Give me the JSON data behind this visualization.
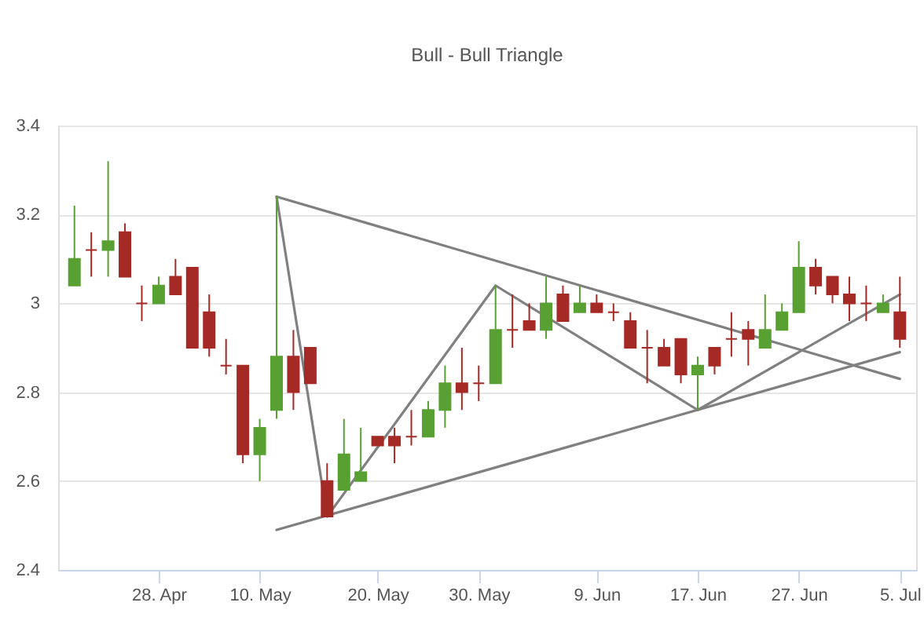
{
  "chart_data": {
    "type": "candlestick",
    "subtitle": "Bull - Bull Triangle",
    "categories": [
      null,
      null,
      null,
      null,
      null,
      "28. Apr",
      null,
      null,
      null,
      null,
      null,
      "10. May",
      null,
      null,
      null,
      null,
      null,
      null,
      "20. May",
      null,
      null,
      null,
      null,
      null,
      "30. May",
      null,
      null,
      null,
      null,
      null,
      null,
      "9. Jun",
      null,
      null,
      null,
      null,
      null,
      "17. Jun",
      null,
      null,
      null,
      null,
      null,
      "27. Jun",
      null,
      null,
      null,
      null,
      null,
      "5. Jul"
    ],
    "ohlc": [
      [
        3.04,
        3.22,
        3.04,
        3.1
      ],
      [
        3.12,
        3.16,
        3.06,
        3.12
      ],
      [
        3.12,
        3.32,
        3.06,
        3.14
      ],
      [
        3.16,
        3.18,
        3.06,
        3.06
      ],
      [
        3.0,
        3.04,
        2.96,
        3.0
      ],
      [
        3.0,
        3.06,
        3.0,
        3.04
      ],
      [
        3.06,
        3.1,
        3.02,
        3.02
      ],
      [
        3.08,
        3.08,
        2.9,
        2.9
      ],
      [
        2.98,
        3.02,
        2.88,
        2.9
      ],
      [
        2.86,
        2.92,
        2.84,
        2.86
      ],
      [
        2.86,
        2.86,
        2.64,
        2.66
      ],
      [
        2.66,
        2.74,
        2.6,
        2.72
      ],
      [
        2.76,
        3.24,
        2.74,
        2.88
      ],
      [
        2.88,
        2.94,
        2.76,
        2.8
      ],
      [
        2.9,
        2.9,
        2.82,
        2.82
      ],
      [
        2.6,
        2.64,
        2.52,
        2.52
      ],
      [
        2.58,
        2.74,
        2.58,
        2.66
      ],
      [
        2.6,
        2.72,
        2.6,
        2.62
      ],
      [
        2.7,
        2.7,
        2.68,
        2.68
      ],
      [
        2.7,
        2.72,
        2.64,
        2.68
      ],
      [
        2.7,
        2.76,
        2.68,
        2.7
      ],
      [
        2.7,
        2.78,
        2.7,
        2.76
      ],
      [
        2.76,
        2.86,
        2.72,
        2.82
      ],
      [
        2.82,
        2.9,
        2.76,
        2.8
      ],
      [
        2.82,
        2.86,
        2.78,
        2.82
      ],
      [
        2.82,
        3.04,
        2.82,
        2.94
      ],
      [
        2.94,
        3.02,
        2.9,
        2.94
      ],
      [
        2.96,
        3.0,
        2.94,
        2.94
      ],
      [
        2.94,
        3.06,
        2.92,
        3.0
      ],
      [
        3.02,
        3.04,
        2.96,
        2.96
      ],
      [
        2.98,
        3.04,
        2.98,
        3.0
      ],
      [
        3.0,
        3.02,
        2.98,
        2.98
      ],
      [
        2.98,
        3.0,
        2.96,
        2.98
      ],
      [
        2.96,
        2.98,
        2.9,
        2.9
      ],
      [
        2.9,
        2.94,
        2.82,
        2.9
      ],
      [
        2.9,
        2.92,
        2.86,
        2.86
      ],
      [
        2.92,
        2.92,
        2.82,
        2.84
      ],
      [
        2.84,
        2.88,
        2.76,
        2.86
      ],
      [
        2.9,
        2.9,
        2.84,
        2.86
      ],
      [
        2.92,
        2.98,
        2.88,
        2.92
      ],
      [
        2.94,
        2.96,
        2.86,
        2.92
      ],
      [
        2.9,
        3.02,
        2.9,
        2.94
      ],
      [
        2.94,
        3.0,
        2.94,
        2.98
      ],
      [
        2.98,
        3.14,
        2.98,
        3.08
      ],
      [
        3.08,
        3.1,
        3.02,
        3.04
      ],
      [
        3.06,
        3.06,
        3.0,
        3.02
      ],
      [
        3.02,
        3.06,
        2.96,
        3.0
      ],
      [
        3.0,
        3.04,
        2.96,
        3.0
      ],
      [
        2.98,
        3.02,
        2.98,
        3.0
      ],
      [
        2.98,
        3.06,
        2.9,
        2.92
      ]
    ],
    "colors": [
      "#58a032",
      "#a52a25",
      "#58a032",
      "#a52a25",
      "#a52a25",
      "#58a032",
      "#a52a25",
      "#a52a25",
      "#a52a25",
      "#a52a25",
      "#a52a25",
      "#58a032",
      "#58a032",
      "#a52a25",
      "#a52a25",
      "#a52a25",
      "#58a032",
      "#58a032",
      "#a52a25",
      "#a52a25",
      "#a52a25",
      "#58a032",
      "#58a032",
      "#a52a25",
      "#a52a25",
      "#58a032",
      "#a52a25",
      "#a52a25",
      "#58a032",
      "#a52a25",
      "#58a032",
      "#a52a25",
      "#a52a25",
      "#a52a25",
      "#a52a25",
      "#a52a25",
      "#a52a25",
      "#58a032",
      "#a52a25",
      "#a52a25",
      "#a52a25",
      "#58a032",
      "#58a032",
      "#58a032",
      "#a52a25",
      "#a52a25",
      "#a52a25",
      "#a52a25",
      "#58a032",
      "#a52a25"
    ],
    "series": [
      {
        "type": "line",
        "color": "#808080",
        "values": [
          null,
          null,
          null,
          null,
          null,
          null,
          null,
          null,
          null,
          null,
          null,
          null,
          3.24,
          null,
          null,
          null,
          null,
          null,
          null,
          null,
          null,
          null,
          null,
          null,
          null,
          null,
          null,
          null,
          null,
          null,
          null,
          null,
          null,
          null,
          null,
          null,
          null,
          null,
          null,
          null,
          null,
          null,
          null,
          null,
          null,
          null,
          null,
          null,
          null,
          2.83
        ]
      },
      {
        "type": "line",
        "color": "#808080",
        "values": [
          null,
          null,
          null,
          null,
          null,
          null,
          null,
          null,
          null,
          null,
          null,
          null,
          2.49,
          null,
          null,
          null,
          null,
          null,
          null,
          null,
          null,
          null,
          null,
          null,
          null,
          null,
          null,
          null,
          null,
          null,
          null,
          null,
          null,
          null,
          null,
          null,
          null,
          null,
          null,
          null,
          null,
          null,
          null,
          null,
          null,
          null,
          null,
          null,
          null,
          2.89
        ]
      },
      {
        "type": "line",
        "color": "#808080",
        "values": [
          null,
          null,
          null,
          null,
          null,
          null,
          null,
          null,
          null,
          null,
          null,
          null,
          3.24,
          null,
          null,
          2.52,
          null,
          null,
          null,
          null,
          null,
          null,
          null,
          null,
          null,
          3.04,
          null,
          null,
          null,
          null,
          null,
          null,
          null,
          null,
          null,
          null,
          null,
          2.76,
          null,
          null,
          null,
          null,
          null,
          null,
          null,
          null,
          null,
          null,
          null,
          3.02
        ]
      }
    ],
    "ylim": [
      2.4,
      3.4
    ],
    "yticks": [
      2.4,
      2.6,
      2.8,
      3,
      3.2,
      3.4
    ],
    "grid": "y"
  }
}
